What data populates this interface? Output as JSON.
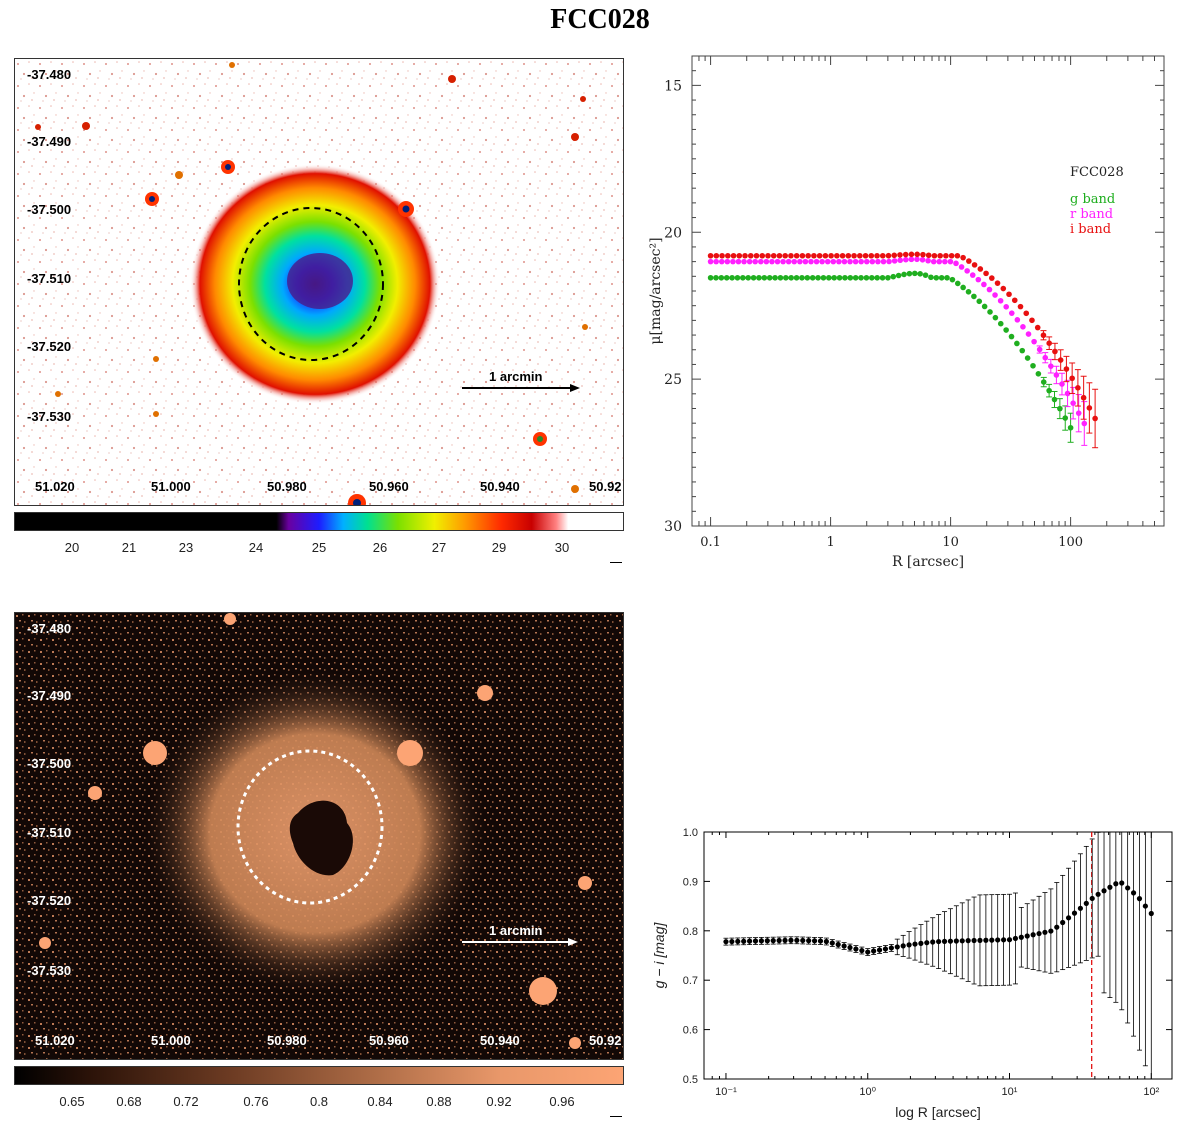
{
  "title": "FCC028",
  "images": [
    {
      "y_ticks": [
        "-37.480",
        "-37.490",
        "-37.500",
        "-37.510",
        "-37.520",
        "-37.530"
      ],
      "x_ticks": [
        "51.020",
        "51.000",
        "50.980",
        "50.960",
        "50.940",
        "50.92"
      ],
      "scale_label": "1 arcmin",
      "colorbar_ticks": [
        "20",
        "21",
        "23",
        "24",
        "25",
        "26",
        "27",
        "29",
        "30"
      ],
      "colorbar_scale": "rainbow (black→purple→blue→green→yellow→red→white)"
    },
    {
      "y_ticks": [
        "-37.480",
        "-37.490",
        "-37.500",
        "-37.510",
        "-37.520",
        "-37.530"
      ],
      "x_ticks": [
        "51.020",
        "51.000",
        "50.980",
        "50.960",
        "50.940",
        "50.92"
      ],
      "scale_label": "1 arcmin",
      "colorbar_ticks": [
        "0.65",
        "0.68",
        "0.72",
        "0.76",
        "0.8",
        "0.84",
        "0.88",
        "0.92",
        "0.96"
      ],
      "colorbar_scale": "copper (black→orange)"
    }
  ],
  "chart_data": [
    {
      "type": "scatter",
      "title": "",
      "xlabel": "R [arcsec]",
      "ylabel": "μ[mag/arcsec²]",
      "x_scale": "log",
      "xlim": [
        0.07,
        600
      ],
      "ylim": [
        30,
        14
      ],
      "y_inverted": true,
      "x_ticks": [
        "0.1",
        "1",
        "10",
        "100"
      ],
      "y_ticks": [
        "15",
        "20",
        "25",
        "30"
      ],
      "legend_title": "FCC028",
      "legend_position": "top-right",
      "series": [
        {
          "name": "g band",
          "color": "#1fae1f",
          "plateau": 21.55,
          "bump": -0.15,
          "knee": 14,
          "slope": 1.2,
          "x_end": 100,
          "err_from": 55
        },
        {
          "name": "r band",
          "color": "#ff20ff",
          "plateau": 21.0,
          "bump": -0.08,
          "knee": 15,
          "slope": 1.1,
          "x_end": 130,
          "err_from": 55
        },
        {
          "name": "i band",
          "color": "#e81010",
          "plateau": 20.8,
          "bump": -0.05,
          "knee": 17,
          "slope": 1.0,
          "x_end": 160,
          "err_from": 55
        }
      ]
    },
    {
      "type": "scatter",
      "title": "",
      "xlabel": "log R [arcsec]",
      "ylabel": "g − i [mag]",
      "x_scale": "log",
      "xlim": [
        0.07,
        140
      ],
      "ylim": [
        0.5,
        1.0
      ],
      "x_ticks": [
        "10⁻¹",
        "10⁰",
        "10¹",
        "10²"
      ],
      "y_ticks": [
        "0.5",
        "0.6",
        "0.7",
        "0.8",
        "0.9",
        "1.0"
      ],
      "vline": {
        "x": 38,
        "color": "#e00000",
        "style": "dashed"
      },
      "series": [
        {
          "name": "",
          "color": "#000000",
          "anchors_x": [
            0.1,
            0.3,
            0.5,
            1.0,
            2.0,
            3.0,
            5.0,
            10,
            20,
            30,
            40,
            60,
            80,
            100
          ],
          "anchors_y": [
            0.778,
            0.781,
            0.779,
            0.757,
            0.772,
            0.778,
            0.78,
            0.782,
            0.8,
            0.84,
            0.87,
            0.9,
            0.87,
            0.835
          ]
        }
      ]
    }
  ]
}
